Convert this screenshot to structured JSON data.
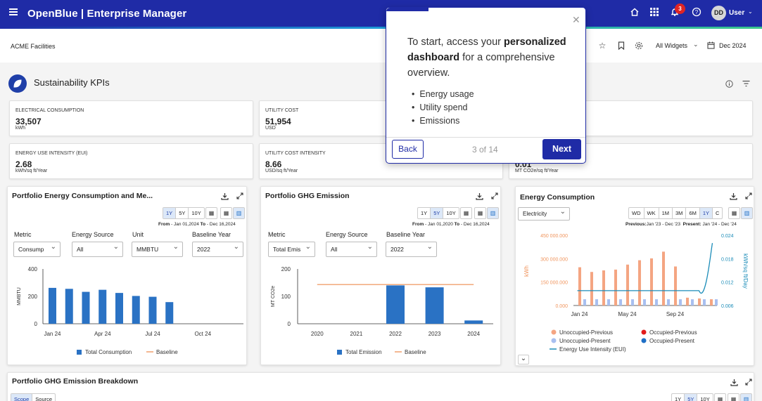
{
  "app": {
    "title": "OpenBlue | Enterprise Manager",
    "notification_count": "3",
    "user_initials": "DD",
    "user_label": "User"
  },
  "subheader": {
    "facility": "ACME Facilities",
    "widgets_label": "All Widgets",
    "date_label": "Dec 2024"
  },
  "section": {
    "title": "Sustainability KPIs"
  },
  "kpis": [
    {
      "label": "ELECTRICAL CONSUMPTION",
      "value": "33,507",
      "unit": "kWh"
    },
    {
      "label": "UTILITY COST",
      "value": "51,954",
      "unit": "USD"
    },
    {
      "label": "",
      "value": "",
      "unit": ""
    },
    {
      "label": "ENERGY USE INTENSITY (EUI)",
      "value": "2.68",
      "unit": "kWh/sq ft/Year"
    },
    {
      "label": "UTILITY COST INTENSITY",
      "value": "8.66",
      "unit": "USD/sq ft/Year"
    },
    {
      "label": "",
      "value": "0.01",
      "unit": "MT CO2e/sq ft/Year"
    }
  ],
  "panel1": {
    "title": "Portfolio Energy Consumption and Me...",
    "ranges": [
      "1Y",
      "5Y",
      "10Y"
    ],
    "active_range": "1Y",
    "range_from_label": "From",
    "range_from": "- Jan 01,2024",
    "range_to_label": "To",
    "range_to": "- Dec 16,2024",
    "filters": [
      {
        "label": "Metric",
        "value": "Consump"
      },
      {
        "label": "Energy Source",
        "value": "All"
      },
      {
        "label": "Unit",
        "value": "MMBTU"
      },
      {
        "label": "Baseline Year",
        "value": "2022"
      }
    ]
  },
  "panel2": {
    "title": "Portfolio GHG Emission",
    "ranges": [
      "1Y",
      "5Y",
      "10Y"
    ],
    "active_range": "5Y",
    "range_from_label": "From",
    "range_from": "- Jan 01,2020",
    "range_to_label": "To",
    "range_to": "- Dec 16,2024",
    "filters": [
      {
        "label": "Metric",
        "value": "Total Emis"
      },
      {
        "label": "Energy Source",
        "value": "All"
      },
      {
        "label": "Baseline Year",
        "value": "2022"
      }
    ]
  },
  "panel3": {
    "title": "Energy Consumption",
    "dropdown": "Electricity",
    "ranges": [
      "WD",
      "WK",
      "1M",
      "3M",
      "6M",
      "1Y",
      "C"
    ],
    "active_range": "1Y",
    "previous_label": "Previous:",
    "previous_range": "Jan '23 - Dec '23",
    "present_label": "Present:",
    "present_range": "Jan '24 - Dec '24"
  },
  "panel4": {
    "title": "Portfolio GHG Emission Breakdown",
    "tabs": [
      "Scope",
      "Source"
    ],
    "ranges": [
      "1Y",
      "5Y",
      "10Y"
    ]
  },
  "tour": {
    "intro": "To start, access your",
    "emphasis": "personalized dashboard",
    "rest": "for a comprehensive overview.",
    "items": [
      "Energy usage",
      "Utility spend",
      "Emissions"
    ],
    "back_label": "Back",
    "counter": "3 of 14",
    "next_label": "Next"
  },
  "colors": {
    "brand": "#1f2ba6",
    "bar_blue": "#2a72c4",
    "baseline": "#f0a06e",
    "unocc_prev": "#f4a582",
    "unocc_pres": "#a8bff0",
    "eui_line": "#1b8cb8"
  },
  "chart_data": [
    {
      "type": "bar",
      "categories": [
        "Jan 24",
        "Feb 24",
        "Mar 24",
        "Apr 24",
        "May 24",
        "Jun 24",
        "Jul 24",
        "Aug 24",
        "Sep 24",
        "Oct 24",
        "Nov 24",
        "Dec 24"
      ],
      "x_tick_labels": [
        "Jan 24",
        "Apr 24",
        "Jul 24",
        "Oct 24"
      ],
      "series": [
        {
          "name": "Total Consumption",
          "values": [
            262,
            255,
            233,
            248,
            225,
            203,
            197,
            158,
            null,
            null,
            null,
            null
          ]
        },
        {
          "name": "Baseline",
          "values": [
            null,
            null,
            null,
            null,
            null,
            null,
            null,
            null,
            null,
            null,
            null,
            null
          ]
        }
      ],
      "ylabel": "MMBTU",
      "ylim": [
        0,
        400
      ],
      "yticks": [
        0,
        200,
        400
      ],
      "legend": "bottom"
    },
    {
      "type": "bar",
      "categories": [
        "2020",
        "2021",
        "2022",
        "2023",
        "2024"
      ],
      "series": [
        {
          "name": "Total Emission",
          "values": [
            0,
            0,
            140,
            133,
            12
          ]
        },
        {
          "name": "Baseline",
          "values": [
            143,
            143,
            143,
            143,
            143
          ]
        }
      ],
      "ylabel": "MT CO2e",
      "ylim": [
        0,
        200
      ],
      "yticks": [
        0,
        100,
        200
      ],
      "legend": "bottom"
    },
    {
      "type": "bar",
      "categories": [
        "Jan 24",
        "Feb 24",
        "Mar 24",
        "Apr 24",
        "May 24",
        "Jun 24",
        "Jul 24",
        "Aug 24",
        "Sep 24",
        "Oct 24",
        "Nov 24",
        "Dec 24"
      ],
      "x_tick_labels": [
        "Jan 24",
        "May 24",
        "Sep 24"
      ],
      "series": [
        {
          "name": "Unoccupied-Previous",
          "values": [
            245000000,
            215000000,
            225000000,
            230000000,
            262000000,
            290000000,
            302000000,
            345000000,
            250000000,
            50000000,
            45000000,
            40000000
          ]
        },
        {
          "name": "Occupied-Previous",
          "values": [
            0,
            0,
            0,
            0,
            0,
            0,
            0,
            0,
            0,
            0,
            0,
            0
          ]
        },
        {
          "name": "Unoccupied-Present",
          "values": [
            40000000,
            40000000,
            40000000,
            40000000,
            40000000,
            40000000,
            40000000,
            40000000,
            40000000,
            40000000,
            40000000,
            40000000
          ]
        },
        {
          "name": "Occupied-Present",
          "values": [
            0,
            0,
            0,
            0,
            0,
            0,
            0,
            0,
            0,
            0,
            0,
            0
          ]
        },
        {
          "name": "Energy Use Intensity (EUI)",
          "axis": "right",
          "values": [
            0.0098,
            0.0098,
            0.0098,
            0.0098,
            0.0098,
            0.0098,
            0.0098,
            0.0098,
            0.0098,
            0.0098,
            0.0098,
            0.022
          ]
        }
      ],
      "ylabel": "kWh",
      "y2label": "kWh/sq ft/Day",
      "ylim": [
        0,
        450000000
      ],
      "yticks": [
        "0.000",
        "150 000.000",
        "300 000.000",
        "450 000.000"
      ],
      "y2lim": [
        0.006,
        0.024
      ],
      "y2ticks": [
        "0.006",
        "0.012",
        "0.018",
        "0.024"
      ],
      "legend": "bottom"
    }
  ]
}
